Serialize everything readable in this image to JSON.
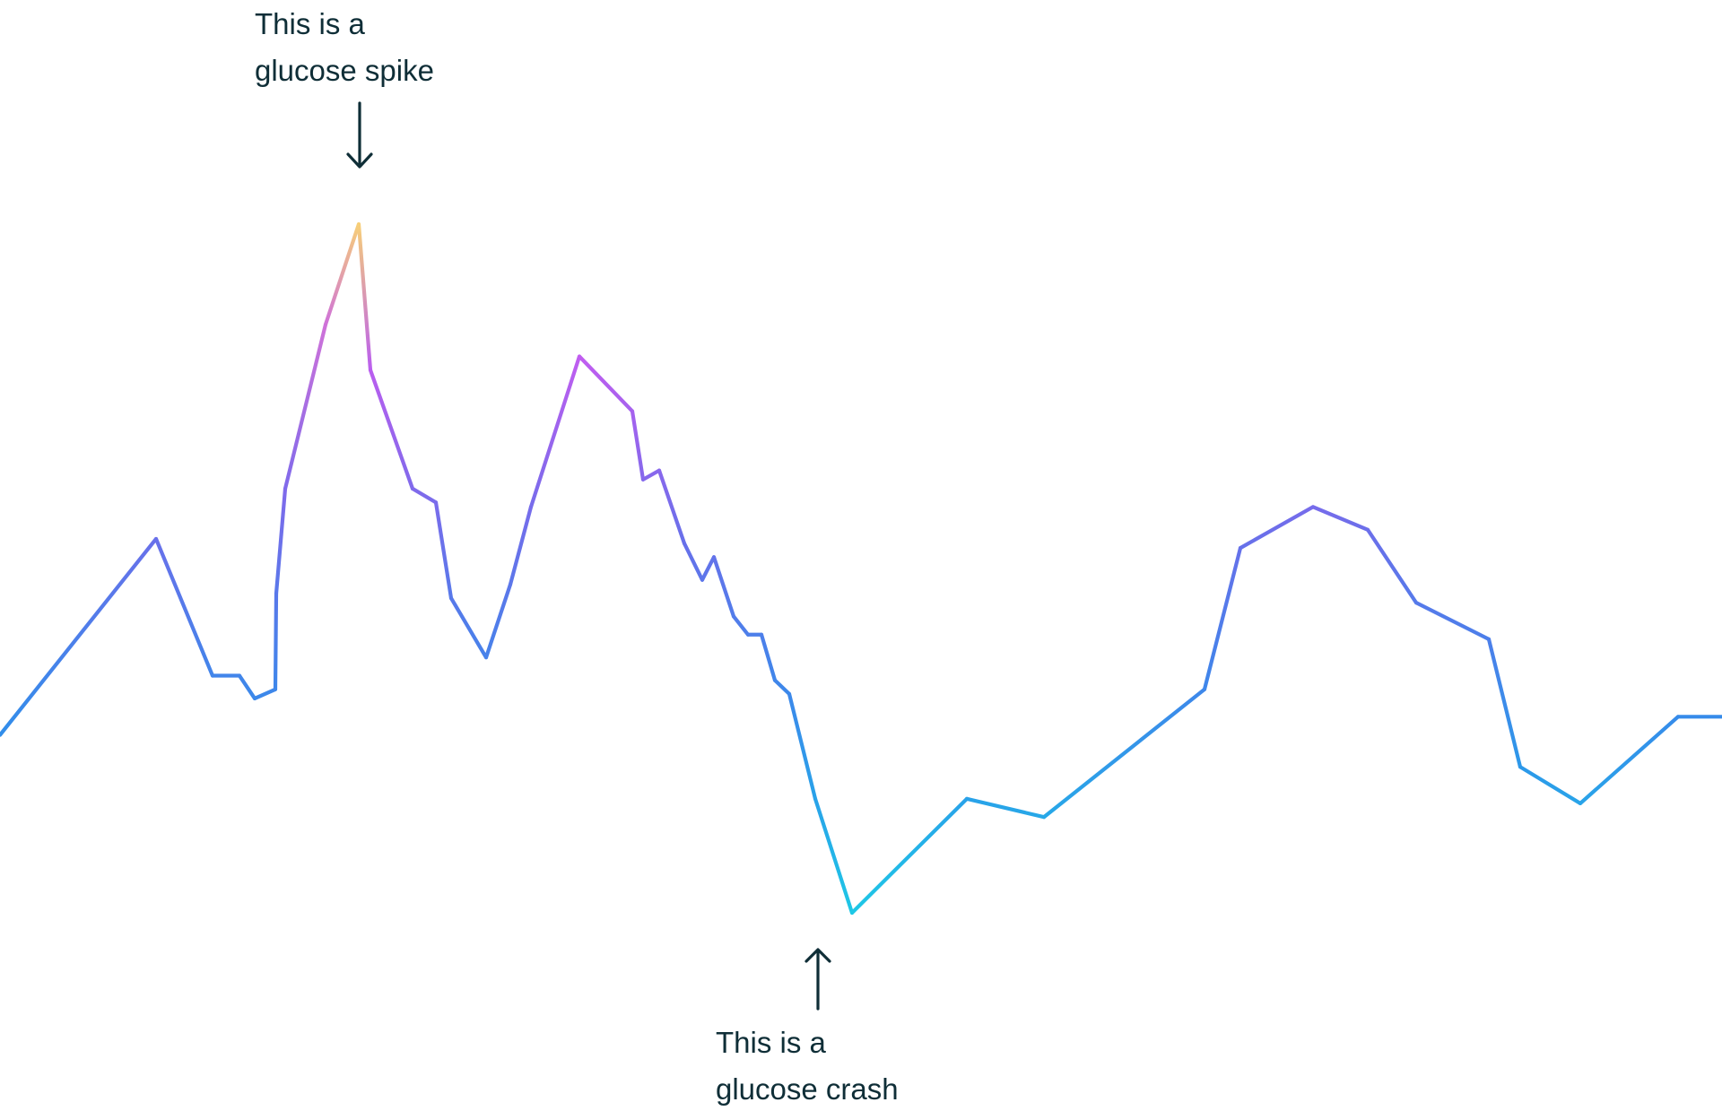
{
  "chart_data": {
    "type": "line",
    "title": "",
    "xlabel": "",
    "ylabel": "",
    "grid": false,
    "legend": "none",
    "series": [
      {
        "x": [
          0,
          1.74,
          2.37,
          2.67,
          2.84,
          3.07,
          3.08,
          3.18,
          3.63,
          4.0,
          4.13,
          4.6,
          4.86,
          5.03,
          5.42,
          5.69,
          5.92,
          6.46,
          7.05,
          7.17,
          7.35,
          7.63,
          7.83,
          7.96,
          8.18,
          8.34,
          8.49,
          8.64,
          8.8,
          9.09,
          9.5,
          10.78,
          11.64,
          13.43,
          13.83,
          14.64,
          15.25,
          15.79,
          16.6,
          16.95,
          17.62,
          18.71,
          19.2
        ],
        "y": [
          90,
          133,
          103,
          103,
          98,
          100,
          121,
          144,
          180,
          202,
          170,
          144,
          141,
          120,
          107,
          123,
          140,
          173,
          161,
          146,
          148,
          132,
          124,
          129,
          116,
          112,
          112,
          102,
          99,
          76,
          51,
          76,
          72,
          100,
          131,
          140,
          135,
          119,
          111,
          83,
          75,
          94,
          94
        ]
      }
    ],
    "colors": {
      "low": "#1ec8e6",
      "base": "#2f8fea",
      "mid": "#6a6fea",
      "high": "#c55cf0",
      "peak": "#f7cf78"
    },
    "annotations": [
      {
        "lines": [
          "This is a",
          "glucose spike"
        ],
        "point_index": 9,
        "arrow": "down"
      },
      {
        "lines": [
          "This is a",
          "glucose crash"
        ],
        "point_index": 30,
        "arrow": "up"
      }
    ]
  }
}
